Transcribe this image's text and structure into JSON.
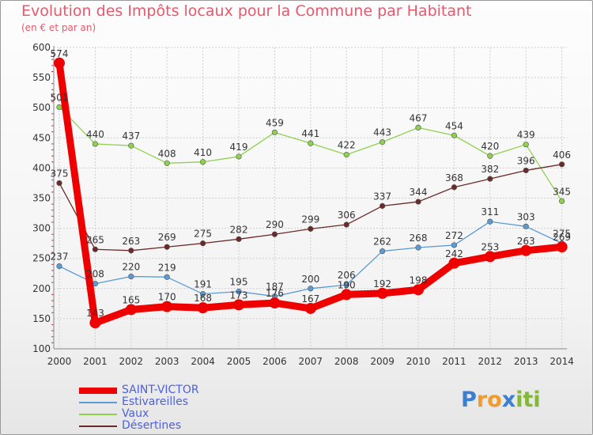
{
  "title": "Evolution des Impôts locaux pour la Commune par Habitant",
  "subtitle": "(en € et par an)",
  "logo": {
    "text": "Proxiti",
    "letters": [
      "P",
      "r",
      "o",
      "x",
      "i",
      "t",
      "i"
    ],
    "colors": [
      "#3b7fd0",
      "#f09b2a",
      "#f09b2a",
      "#3b7fd0",
      "#83b838",
      "#83b838",
      "#83b838"
    ]
  },
  "chart_data": {
    "type": "line",
    "title": "Evolution des Impôts locaux pour la Commune par Habitant",
    "subtitle": "(en € et par an)",
    "x": [
      "2000",
      "2001",
      "2002",
      "2003",
      "2004",
      "2005",
      "2006",
      "2007",
      "2008",
      "2009",
      "2010",
      "2011",
      "2012",
      "2013",
      "2014"
    ],
    "yticks": [
      "100",
      "150",
      "200",
      "250",
      "300",
      "350",
      "400",
      "450",
      "500",
      "550",
      "600"
    ],
    "ylim": [
      100,
      600
    ],
    "grid": true,
    "legend_position": "bottom-left",
    "series": [
      {
        "name": "SAINT-VICTOR",
        "color": "#ee0000",
        "values": [
          574,
          143,
          165,
          170,
          168,
          173,
          176,
          167,
          190,
          192,
          198,
          242,
          253,
          263,
          269
        ],
        "labels": [
          "574",
          "143",
          "165",
          "170",
          "168",
          "173",
          "176",
          "167",
          "190",
          "192",
          "198",
          "242",
          "253",
          "263",
          "269"
        ]
      },
      {
        "name": "Estivareilles",
        "color": "#5b9bd5",
        "values": [
          237,
          208,
          220,
          219,
          191,
          195,
          187,
          200,
          206,
          262,
          268,
          272,
          311,
          303,
          275
        ],
        "labels": [
          "237",
          "208",
          "220",
          "219",
          "191",
          "195",
          "187",
          "200",
          "206",
          "262",
          "268",
          "272",
          "311",
          "303",
          "275"
        ]
      },
      {
        "name": "Vaux",
        "color": "#8fd14f",
        "values": [
          501,
          440,
          437,
          408,
          410,
          419,
          459,
          441,
          422,
          443,
          467,
          454,
          420,
          439,
          345
        ],
        "labels": [
          "501",
          "440",
          "437",
          "408",
          "410",
          "419",
          "459",
          "441",
          "422",
          "443",
          "467",
          "454",
          "420",
          "439",
          "345"
        ]
      },
      {
        "name": "Désertines",
        "color": "#6b2a2a",
        "values": [
          375,
          265,
          263,
          269,
          275,
          282,
          290,
          299,
          306,
          337,
          344,
          368,
          382,
          396,
          406
        ],
        "labels": [
          "375",
          "265",
          "263",
          "269",
          "275",
          "282",
          "290",
          "299",
          "306",
          "337",
          "344",
          "368",
          "382",
          "396",
          "406"
        ]
      }
    ]
  }
}
